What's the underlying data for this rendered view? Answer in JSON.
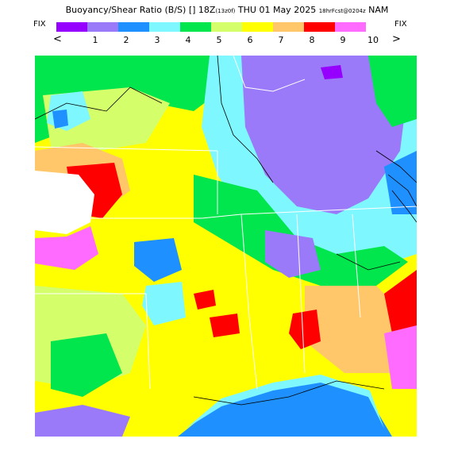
{
  "header": {
    "title_main": "Buoyancy/Shear Ratio (B/S) [] 18Z",
    "title_init": "(13z0f)",
    "title_date": "THU 01 May 2025",
    "title_fcst": "18hrFcst@0204z",
    "title_model": "NAM"
  },
  "colorbar": {
    "fix_left": "FIX",
    "fix_right": "FIX",
    "prev_arrow": "<",
    "next_arrow": ">",
    "colors": [
      "#9600fe",
      "#9a7af8",
      "#1e90ff",
      "#7ff7ff",
      "#00e64c",
      "#d4ff6b",
      "#ffff00",
      "#ffc66a",
      "#ff0000",
      "#ff6bff"
    ],
    "labels": [
      "1",
      "2",
      "3",
      "4",
      "5",
      "6",
      "7",
      "8",
      "9",
      "10"
    ]
  },
  "map": {
    "region": "Southeast United States"
  }
}
